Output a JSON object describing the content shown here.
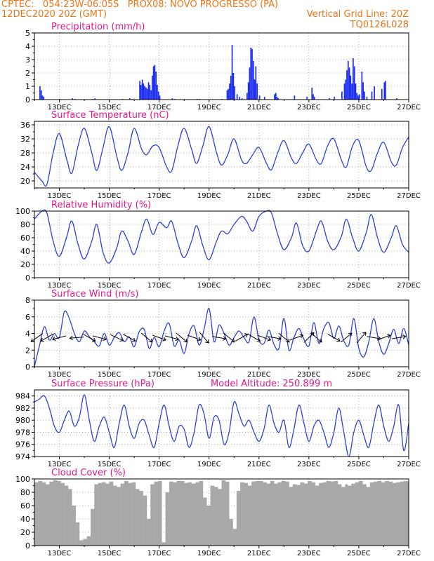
{
  "header": {
    "line1": "CPTEC:   054:23W-06:05S   PROX08: NOVO PROGRESSO (PA)",
    "line2_left": "12DEC2020 20Z (GMT)",
    "line2_right": "Vertical Grid Line: 20Z",
    "line3_right": "TQ0126L028"
  },
  "x_ticks": [
    "13DEC",
    "15DEC",
    "17DEC",
    "19DEC",
    "21DEC",
    "23DEC",
    "25DEC",
    "27DEC"
  ],
  "chart_data": [
    {
      "type": "bar",
      "title": "Precipitation (mm/h)",
      "ylim": [
        0,
        5
      ],
      "yticks": [
        0,
        1,
        2,
        3,
        4,
        5
      ],
      "color": "#1a2cf0",
      "x": [
        12.2,
        12.25,
        12.3,
        12.35,
        13.0,
        13.5,
        13.6,
        14.3,
        14.4,
        15.5,
        15.8,
        15.9,
        16.2,
        16.25,
        16.3,
        16.35,
        16.4,
        16.45,
        16.5,
        16.55,
        16.6,
        16.65,
        16.7,
        16.75,
        16.8,
        16.85,
        16.9,
        16.95,
        17.0,
        17.5,
        17.6,
        18.5,
        18.6,
        19.5,
        19.7,
        19.75,
        19.8,
        19.85,
        19.9,
        19.95,
        20.0,
        20.1,
        20.2,
        20.3,
        20.5,
        20.55,
        20.6,
        20.65,
        20.7,
        20.75,
        20.8,
        20.85,
        20.9,
        21.0,
        21.2,
        21.6,
        21.65,
        21.7,
        21.75,
        22.4,
        22.9,
        23.1,
        23.15,
        23.2,
        23.8,
        24.0,
        24.3,
        24.4,
        24.45,
        24.5,
        24.55,
        24.6,
        24.65,
        24.7,
        24.75,
        24.8,
        24.85,
        24.9,
        24.95,
        25.0,
        25.1,
        25.15,
        25.2,
        25.3,
        25.5,
        25.6,
        25.9,
        26.0,
        26.05,
        26.5
      ],
      "values": [
        1.0,
        0.7,
        0.3,
        0.2,
        0.05,
        0.1,
        0.05,
        0.05,
        0.1,
        0.05,
        0.1,
        0.05,
        1.4,
        1.1,
        1.5,
        1.2,
        1.0,
        0.9,
        0.8,
        1.3,
        1.1,
        0.7,
        1.8,
        2.5,
        2.6,
        2.1,
        1.1,
        0.6,
        0.3,
        0.1,
        0.05,
        0.05,
        0.05,
        0.05,
        0.7,
        0.8,
        1.2,
        1.8,
        4.1,
        2.0,
        1.0,
        0.4,
        0.2,
        0.1,
        0.5,
        1.3,
        2.4,
        3.9,
        3.8,
        2.9,
        1.5,
        2.5,
        1.2,
        0.3,
        0.2,
        0.4,
        0.5,
        0.2,
        0.1,
        0.3,
        0.2,
        0.9,
        0.4,
        0.2,
        0.1,
        0.2,
        0.6,
        1.2,
        1.5,
        2.2,
        2.9,
        2.4,
        1.8,
        1.2,
        3.1,
        2.5,
        1.2,
        0.5,
        0.3,
        0.4,
        2.1,
        1.3,
        0.6,
        0.2,
        0.6,
        1.0,
        0.8,
        1.3,
        1.4,
        0.1
      ]
    },
    {
      "type": "line",
      "title": "Surface Temperature (nC)",
      "ylim": [
        18,
        37
      ],
      "yticks": [
        20,
        24,
        28,
        32,
        36
      ],
      "color": "#2f3fd8",
      "x": [
        12.0,
        12.3,
        12.5,
        12.75,
        13.0,
        13.3,
        13.5,
        13.75,
        14.0,
        14.3,
        14.5,
        14.75,
        15.0,
        15.3,
        15.5,
        15.75,
        16.0,
        16.3,
        16.5,
        16.75,
        17.0,
        17.3,
        17.5,
        17.75,
        18.0,
        18.3,
        18.5,
        18.75,
        19.0,
        19.3,
        19.5,
        19.75,
        20.0,
        20.3,
        20.5,
        20.75,
        21.0,
        21.3,
        21.5,
        21.75,
        22.0,
        22.3,
        22.5,
        22.75,
        23.0,
        23.3,
        23.5,
        23.75,
        24.0,
        24.3,
        24.5,
        24.75,
        25.0,
        25.3,
        25.5,
        25.75,
        26.0,
        26.3,
        26.5,
        26.75,
        27.0
      ],
      "values": [
        22.5,
        20.0,
        19.0,
        28.0,
        33.5,
        26.0,
        22.2,
        30.0,
        35.0,
        28.0,
        23.0,
        29.5,
        35.5,
        27.0,
        23.0,
        28.0,
        35.0,
        29.0,
        27.5,
        30.0,
        29.5,
        24.0,
        22.8,
        30.0,
        35.0,
        29.0,
        25.0,
        30.0,
        35.5,
        28.0,
        24.5,
        27.5,
        32.0,
        26.0,
        25.0,
        27.5,
        29.5,
        25.0,
        23.2,
        28.0,
        31.5,
        26.5,
        25.0,
        28.0,
        30.5,
        26.0,
        25.0,
        30.0,
        32.0,
        26.0,
        24.0,
        30.0,
        31.5,
        24.0,
        23.0,
        28.0,
        31.0,
        25.5,
        24.5,
        29.5,
        32.5
      ]
    },
    {
      "type": "line",
      "title": "Relative Humidity (%)",
      "ylim": [
        0,
        100
      ],
      "yticks": [
        0,
        20,
        40,
        60,
        80,
        100
      ],
      "color": "#2f3fd8",
      "x": [
        12.0,
        12.3,
        12.5,
        12.75,
        13.0,
        13.3,
        13.5,
        13.75,
        14.0,
        14.3,
        14.5,
        14.75,
        15.0,
        15.3,
        15.5,
        15.75,
        16.0,
        16.3,
        16.5,
        16.75,
        17.0,
        17.3,
        17.5,
        17.75,
        18.0,
        18.3,
        18.5,
        18.75,
        19.0,
        19.3,
        19.5,
        19.75,
        20.0,
        20.3,
        20.5,
        20.75,
        21.0,
        21.3,
        21.5,
        21.75,
        22.0,
        22.3,
        22.5,
        22.75,
        23.0,
        23.3,
        23.5,
        23.75,
        24.0,
        24.3,
        24.5,
        24.75,
        25.0,
        25.3,
        25.5,
        25.75,
        26.0,
        26.3,
        26.5,
        26.75,
        27.0
      ],
      "values": [
        88,
        100,
        97,
        55,
        32,
        62,
        85,
        50,
        28,
        55,
        80,
        38,
        22,
        45,
        70,
        55,
        35,
        70,
        88,
        65,
        83,
        75,
        85,
        52,
        30,
        55,
        78,
        48,
        27,
        55,
        70,
        66,
        80,
        92,
        85,
        70,
        92,
        100,
        97,
        65,
        42,
        60,
        82,
        48,
        40,
        70,
        85,
        55,
        42,
        62,
        88,
        60,
        40,
        68,
        95,
        60,
        38,
        60,
        78,
        50,
        38
      ]
    },
    {
      "type": "line",
      "title": "Surface Wind (m/s)",
      "ylim": [
        0,
        8
      ],
      "yticks": [
        0,
        2,
        4,
        6,
        8
      ],
      "color": "#2f3fd8",
      "x": [
        12.0,
        12.2,
        12.4,
        12.6,
        12.8,
        13.0,
        13.2,
        13.4,
        13.6,
        13.8,
        14.0,
        14.2,
        14.4,
        14.6,
        14.8,
        15.0,
        15.2,
        15.4,
        15.6,
        15.8,
        16.0,
        16.2,
        16.4,
        16.6,
        16.8,
        17.0,
        17.2,
        17.4,
        17.6,
        17.8,
        18.0,
        18.2,
        18.4,
        18.6,
        18.8,
        19.0,
        19.2,
        19.4,
        19.6,
        19.8,
        20.0,
        20.2,
        20.4,
        20.6,
        20.8,
        21.0,
        21.2,
        21.4,
        21.6,
        21.8,
        22.0,
        22.2,
        22.4,
        22.6,
        22.8,
        23.0,
        23.2,
        23.4,
        23.6,
        23.8,
        24.0,
        24.2,
        24.4,
        24.6,
        24.8,
        25.0,
        25.2,
        25.4,
        25.6,
        25.8,
        26.0,
        26.2,
        26.4,
        26.6,
        26.8,
        27.0
      ],
      "values": [
        0.0,
        2.5,
        4.8,
        3.2,
        4.0,
        3.5,
        6.6,
        5.8,
        4.0,
        3.0,
        4.3,
        3.6,
        3.0,
        2.5,
        4.0,
        2.6,
        3.5,
        4.1,
        3.0,
        3.6,
        2.4,
        4.2,
        4.5,
        2.2,
        3.5,
        2.4,
        4.3,
        5.2,
        2.5,
        3.2,
        1.6,
        4.0,
        4.9,
        2.6,
        4.5,
        7.0,
        3.0,
        5.0,
        4.0,
        2.6,
        3.5,
        4.3,
        3.5,
        3.0,
        6.0,
        3.2,
        2.8,
        4.4,
        2.7,
        2.2,
        5.8,
        2.0,
        3.5,
        4.6,
        3.3,
        2.5,
        5.3,
        2.8,
        4.6,
        5.3,
        3.4,
        4.9,
        3.1,
        2.6,
        5.8,
        2.2,
        1.2,
        3.0,
        5.8,
        3.0,
        1.5,
        2.8,
        4.5,
        2.8,
        4.6,
        2.6
      ],
      "arrows": [
        [
          12.1,
          215
        ],
        [
          12.5,
          210
        ],
        [
          13.0,
          195
        ],
        [
          13.7,
          185
        ],
        [
          14.2,
          330
        ],
        [
          14.6,
          345
        ],
        [
          15.3,
          335
        ],
        [
          15.8,
          330
        ],
        [
          16.5,
          320
        ],
        [
          17.0,
          340
        ],
        [
          17.5,
          345
        ],
        [
          17.9,
          320
        ],
        [
          18.4,
          340
        ],
        [
          18.8,
          310
        ],
        [
          19.4,
          350
        ],
        [
          19.8,
          320
        ],
        [
          20.3,
          30
        ],
        [
          20.8,
          330
        ],
        [
          21.2,
          340
        ],
        [
          21.6,
          350
        ],
        [
          22.0,
          320
        ],
        [
          22.5,
          20
        ],
        [
          23.0,
          45
        ],
        [
          23.3,
          320
        ],
        [
          24.0,
          330
        ],
        [
          24.5,
          40
        ],
        [
          25.1,
          50
        ],
        [
          25.6,
          350
        ],
        [
          26.0,
          20
        ],
        [
          26.6,
          10
        ]
      ]
    },
    {
      "type": "line",
      "title": "Surface Pressure (hPa)",
      "annotation": "Model Altitude: 250.899 m",
      "ylim": [
        974,
        985
      ],
      "yticks": [
        974,
        976,
        978,
        980,
        982,
        984
      ],
      "color": "#2f3fd8",
      "x": [
        12.0,
        12.2,
        12.4,
        12.6,
        12.8,
        13.0,
        13.2,
        13.4,
        13.6,
        13.8,
        14.0,
        14.2,
        14.4,
        14.6,
        14.8,
        15.0,
        15.2,
        15.4,
        15.6,
        15.8,
        16.0,
        16.2,
        16.4,
        16.6,
        16.8,
        17.0,
        17.2,
        17.4,
        17.6,
        17.8,
        18.0,
        18.2,
        18.4,
        18.6,
        18.8,
        19.0,
        19.2,
        19.4,
        19.6,
        19.8,
        20.0,
        20.2,
        20.4,
        20.6,
        20.8,
        21.0,
        21.2,
        21.4,
        21.6,
        21.8,
        22.0,
        22.2,
        22.4,
        22.6,
        22.8,
        23.0,
        23.2,
        23.4,
        23.6,
        23.8,
        24.0,
        24.2,
        24.4,
        24.6,
        24.8,
        25.0,
        25.2,
        25.4,
        25.6,
        25.8,
        26.0,
        26.2,
        26.4,
        26.6,
        26.8,
        27.0
      ],
      "values": [
        983.0,
        983.5,
        984.0,
        982.0,
        979.0,
        978.0,
        980.0,
        981.5,
        979.0,
        980.5,
        984.2,
        980.0,
        976.5,
        979.0,
        980.5,
        978.0,
        975.5,
        979.5,
        982.5,
        979.0,
        977.0,
        979.5,
        980.0,
        977.5,
        975.5,
        979.5,
        982.5,
        979.0,
        976.5,
        979.0,
        978.5,
        975.5,
        978.0,
        982.5,
        981.0,
        977.0,
        980.5,
        980.0,
        976.0,
        978.0,
        983.0,
        981.0,
        979.0,
        980.0,
        978.0,
        976.5,
        978.5,
        982.5,
        979.5,
        978.0,
        980.0,
        975.5,
        978.5,
        982.5,
        979.5,
        976.5,
        979.0,
        980.0,
        978.0,
        975.5,
        978.0,
        982.0,
        978.0,
        974.0,
        978.0,
        980.0,
        977.5,
        975.5,
        979.5,
        982.5,
        979.0,
        976.5,
        979.0,
        982.5,
        975.0,
        979.5
      ]
    },
    {
      "type": "bar",
      "title": "Cloud Cover (%)",
      "ylim": [
        0,
        100
      ],
      "yticks": [
        0,
        20,
        40,
        60,
        80,
        100
      ],
      "color": "#a8a8a8",
      "x": [
        12.0,
        12.15,
        12.3,
        12.45,
        12.6,
        12.75,
        12.9,
        13.05,
        13.2,
        13.35,
        13.5,
        13.65,
        13.8,
        13.95,
        14.1,
        14.25,
        14.4,
        14.55,
        14.7,
        14.85,
        15.0,
        15.15,
        15.3,
        15.45,
        15.6,
        15.75,
        15.9,
        16.05,
        16.2,
        16.35,
        16.5,
        16.65,
        16.8,
        16.95,
        17.1,
        17.25,
        17.4,
        17.55,
        17.7,
        17.85,
        18.0,
        18.15,
        18.3,
        18.45,
        18.6,
        18.75,
        18.9,
        19.05,
        19.2,
        19.35,
        19.5,
        19.65,
        19.8,
        19.95,
        20.1,
        20.25,
        20.4,
        20.55,
        20.7,
        20.85,
        21.0,
        21.15,
        21.3,
        21.45,
        21.6,
        21.75,
        21.9,
        22.05,
        22.2,
        22.35,
        22.5,
        22.65,
        22.8,
        22.95,
        23.1,
        23.25,
        23.4,
        23.55,
        23.7,
        23.85,
        24.0,
        24.15,
        24.3,
        24.45,
        24.55,
        24.7,
        24.85,
        25.0,
        25.15,
        25.3,
        25.45,
        25.6,
        25.75,
        25.9,
        26.05,
        26.2,
        26.35,
        26.5,
        26.65,
        26.8,
        26.95
      ],
      "values": [
        95,
        97,
        95,
        92,
        96,
        98,
        97,
        94,
        90,
        85,
        60,
        35,
        8,
        10,
        14,
        55,
        92,
        94,
        95,
        93,
        96,
        90,
        88,
        93,
        97,
        94,
        95,
        85,
        82,
        75,
        40,
        92,
        96,
        97,
        5,
        80,
        96,
        95,
        97,
        97,
        94,
        95,
        93,
        95,
        97,
        72,
        60,
        90,
        88,
        85,
        98,
        96,
        40,
        25,
        82,
        95,
        94,
        90,
        96,
        97,
        97,
        95,
        93,
        97,
        93,
        95,
        97,
        96,
        88,
        92,
        91,
        95,
        93,
        97,
        95,
        90,
        94,
        95,
        97,
        96,
        97,
        92,
        88,
        92,
        90,
        93,
        95,
        97,
        92,
        88,
        95,
        96,
        97,
        95,
        97,
        96,
        94,
        95,
        96,
        97,
        96
      ]
    }
  ]
}
